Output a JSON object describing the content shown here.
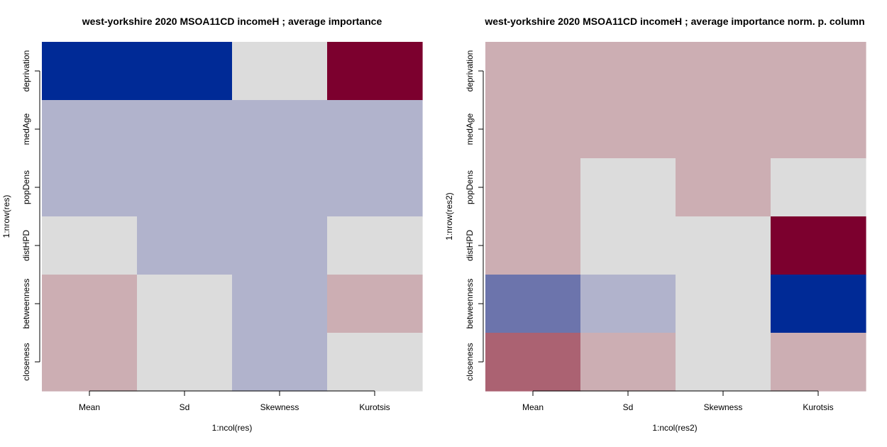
{
  "chart_data": [
    {
      "type": "heatmap",
      "title": "west-yorkshire 2020 MSOA11CD incomeH ; average importance",
      "xlabel": "1:ncol(res)",
      "ylabel": "1:nrow(res)",
      "columns": [
        "Mean",
        "Sd",
        "Skewness",
        "Kurotsis"
      ],
      "rows": [
        "deprivation",
        "medAge",
        "popDens",
        "distHPD",
        "betweenness",
        "closeness"
      ],
      "color_scale": [
        "#002A96",
        "#6C74AC",
        "#B1B3CC",
        "#DCDCDC",
        "#CCAEB3",
        "#AB6272",
        "#7C002E"
      ],
      "values": [
        [
          0,
          0,
          3,
          6
        ],
        [
          2,
          2,
          2,
          2
        ],
        [
          2,
          2,
          2,
          2
        ],
        [
          3,
          2,
          2,
          3
        ],
        [
          4,
          3,
          2,
          4
        ],
        [
          4,
          3,
          2,
          3
        ]
      ]
    },
    {
      "type": "heatmap",
      "title": "west-yorkshire 2020 MSOA11CD incomeH ; average importance norm. p. column",
      "xlabel": "1:ncol(res2)",
      "ylabel": "1:nrow(res2)",
      "columns": [
        "Mean",
        "Sd",
        "Skewness",
        "Kurotsis"
      ],
      "rows": [
        "deprivation",
        "medAge",
        "popDens",
        "distHPD",
        "betweenness",
        "closeness"
      ],
      "color_scale": [
        "#002A96",
        "#6C74AC",
        "#B1B3CC",
        "#DCDCDC",
        "#CCAEB3",
        "#AB6272",
        "#7C002E"
      ],
      "values": [
        [
          4,
          4,
          4,
          4
        ],
        [
          4,
          4,
          4,
          4
        ],
        [
          4,
          3,
          4,
          3
        ],
        [
          4,
          3,
          3,
          6
        ],
        [
          1,
          2,
          3,
          0
        ],
        [
          5,
          4,
          3,
          4
        ]
      ]
    }
  ]
}
